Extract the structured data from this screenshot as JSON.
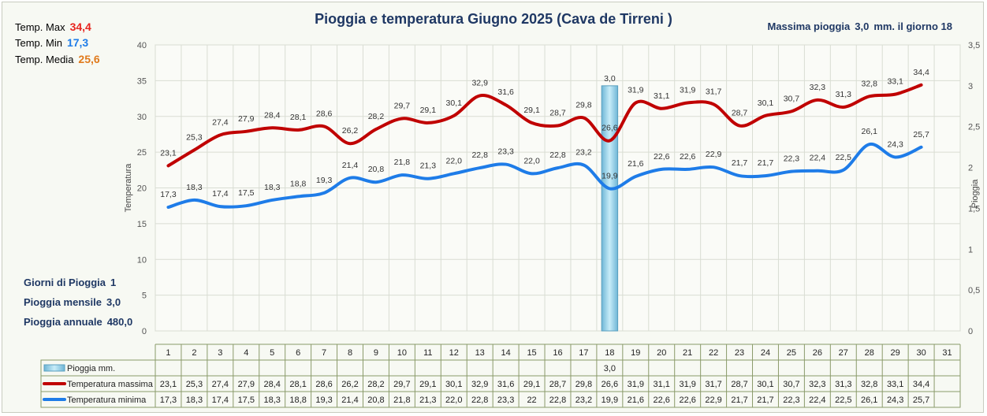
{
  "header": {
    "title": "Pioggia e temperatura Giugno 2025 (Cava de Tirreni )",
    "max_rain_label": "Massima pioggia",
    "max_rain_value": "3,0",
    "max_rain_suffix": "mm. il giorno 18"
  },
  "stats": {
    "tmax_label": "Temp. Max",
    "tmax_value": "34,4",
    "tmax_color": "#e8251f",
    "tmin_label": "Temp. Min",
    "tmin_value": "17,3",
    "tmin_color": "#1e7ce8",
    "tavg_label": "Temp. Media",
    "tavg_value": "25,6",
    "tavg_color": "#e07a1c"
  },
  "rain_summary": {
    "days_label": "Giorni di Pioggia",
    "days_value": "1",
    "month_label": "Pioggia mensile",
    "month_value": "3,0",
    "year_label": "Pioggia annuale",
    "year_value": "480,0"
  },
  "chart_data": {
    "type": "line",
    "ylabel": "Temperatura",
    "y2label": "Pioggia",
    "ylim": [
      0,
      40
    ],
    "y_ticks": [
      "0",
      "5",
      "10",
      "15",
      "20",
      "25",
      "30",
      "35",
      "40"
    ],
    "y2lim": [
      0,
      3.5
    ],
    "y2_ticks": [
      "0",
      "0,5",
      "1",
      "1,5",
      "2",
      "2,5",
      "3",
      "3,5"
    ],
    "categories": [
      "1",
      "2",
      "3",
      "4",
      "5",
      "6",
      "7",
      "8",
      "9",
      "10",
      "11",
      "12",
      "13",
      "14",
      "15",
      "16",
      "17",
      "18",
      "19",
      "20",
      "21",
      "22",
      "23",
      "24",
      "25",
      "26",
      "27",
      "28",
      "29",
      "30",
      "31"
    ],
    "grid": true,
    "series": [
      {
        "name": "Pioggia mm.",
        "kind": "bar",
        "axis": "right",
        "color": "#9ed6ec",
        "values": [
          null,
          null,
          null,
          null,
          null,
          null,
          null,
          null,
          null,
          null,
          null,
          null,
          null,
          null,
          null,
          null,
          null,
          3.0,
          null,
          null,
          null,
          null,
          null,
          null,
          null,
          null,
          null,
          null,
          null,
          null,
          null
        ],
        "labels": [
          "",
          "",
          "",
          "",
          "",
          "",
          "",
          "",
          "",
          "",
          "",
          "",
          "",
          "",
          "",
          "",
          "",
          "3,0",
          "",
          "",
          "",
          "",
          "",
          "",
          "",
          "",
          "",
          "",
          "",
          "",
          ""
        ]
      },
      {
        "name": "Temperatura massima",
        "kind": "line",
        "axis": "left",
        "color": "#c00000",
        "values": [
          23.1,
          25.3,
          27.4,
          27.9,
          28.4,
          28.1,
          28.6,
          26.2,
          28.2,
          29.7,
          29.1,
          30.1,
          32.9,
          31.6,
          29.1,
          28.7,
          29.8,
          26.6,
          31.9,
          31.1,
          31.9,
          31.7,
          28.7,
          30.1,
          30.7,
          32.3,
          31.3,
          32.8,
          33.1,
          34.4,
          null
        ],
        "labels": [
          "23,1",
          "25,3",
          "27,4",
          "27,9",
          "28,4",
          "28,1",
          "28,6",
          "26,2",
          "28,2",
          "29,7",
          "29,1",
          "30,1",
          "32,9",
          "31,6",
          "29,1",
          "28,7",
          "29,8",
          "26,6",
          "31,9",
          "31,1",
          "31,9",
          "31,7",
          "28,7",
          "30,1",
          "30,7",
          "32,3",
          "31,3",
          "32,8",
          "33,1",
          "34,4",
          ""
        ]
      },
      {
        "name": "Temperatura minima",
        "kind": "line",
        "axis": "left",
        "color": "#1e7ce8",
        "values": [
          17.3,
          18.3,
          17.4,
          17.5,
          18.3,
          18.8,
          19.3,
          21.4,
          20.8,
          21.8,
          21.3,
          22.0,
          22.8,
          23.3,
          22.0,
          22.8,
          23.2,
          19.9,
          21.6,
          22.6,
          22.6,
          22.9,
          21.7,
          21.7,
          22.3,
          22.4,
          22.5,
          26.1,
          24.3,
          25.7,
          null
        ],
        "labels": [
          "17,3",
          "18,3",
          "17,4",
          "17,5",
          "18,3",
          "18,8",
          "19,3",
          "21,4",
          "20,8",
          "21,8",
          "21,3",
          "22,0",
          "22,8",
          "23,3",
          "22,0",
          "22,8",
          "23,2",
          "19,9",
          "21,6",
          "22,6",
          "22,6",
          "22,9",
          "21,7",
          "21,7",
          "22,3",
          "22,4",
          "22,5",
          "26,1",
          "24,3",
          "25,7",
          ""
        ],
        "table_labels": [
          "17,3",
          "18,3",
          "17,4",
          "17,5",
          "18,3",
          "18,8",
          "19,3",
          "21,4",
          "20,8",
          "21,8",
          "21,3",
          "22,0",
          "22,8",
          "23,3",
          "22",
          "22,8",
          "23,2",
          "19,9",
          "21,6",
          "22,6",
          "22,6",
          "22,9",
          "21,7",
          "21,7",
          "22,3",
          "22,4",
          "22,5",
          "26,1",
          "24,3",
          "25,7",
          ""
        ]
      }
    ]
  }
}
